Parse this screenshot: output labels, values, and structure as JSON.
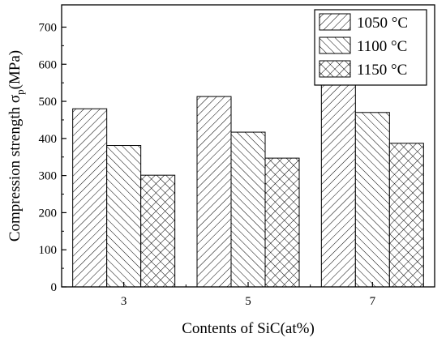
{
  "chart_data": {
    "type": "bar",
    "xlabel": "Contents of SiC(at%)",
    "ylabel": {
      "main": "Compression strength σ",
      "subscript": "p",
      "unit": "(MPa)"
    },
    "categories": [
      "3",
      "5",
      "7"
    ],
    "ylim": [
      0,
      760
    ],
    "yticks": [
      0,
      100,
      200,
      300,
      400,
      500,
      600,
      700
    ],
    "legend_position": "top-right",
    "grid": false,
    "series": [
      {
        "name": "1050 °C",
        "values": [
          480,
          513,
          548
        ],
        "pattern": "diagonal-up"
      },
      {
        "name": "1100 °C",
        "values": [
          381,
          417,
          470
        ],
        "pattern": "diagonal-down"
      },
      {
        "name": "1150 °C",
        "values": [
          301,
          347,
          387
        ],
        "pattern": "crosshatch"
      }
    ]
  }
}
